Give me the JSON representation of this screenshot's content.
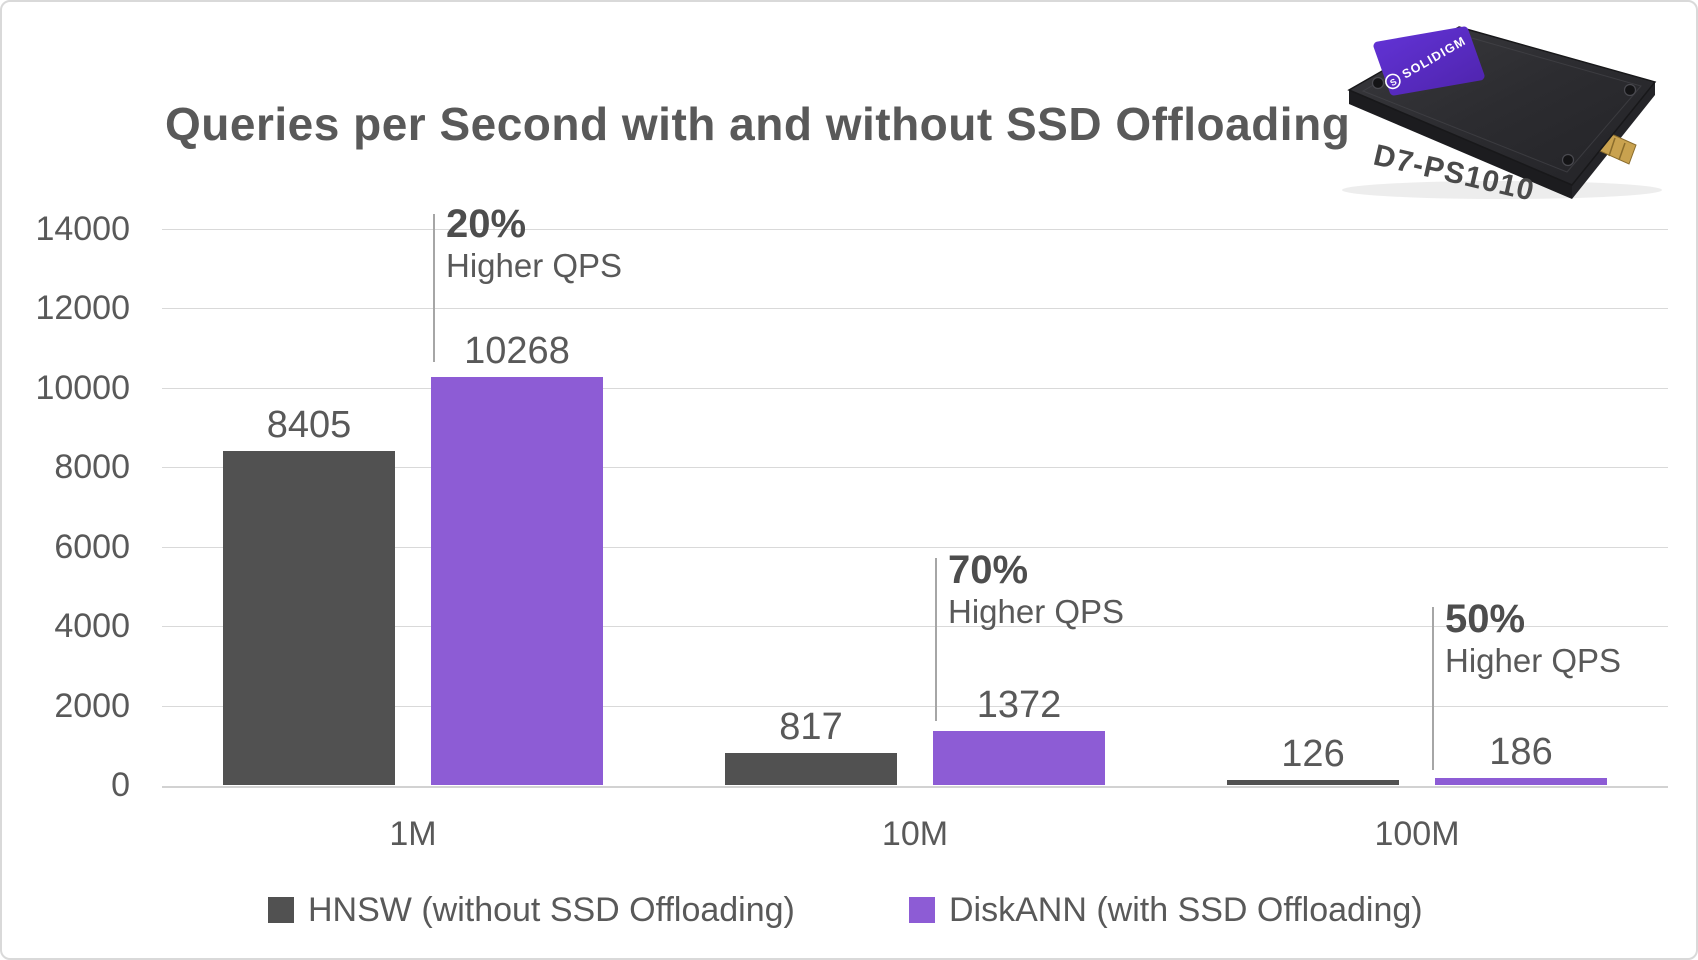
{
  "title": "Queries per Second with and without SSD Offloading",
  "ssd_image": {
    "brand": "SOLIDIGM",
    "model_label": "D7-PS1010"
  },
  "chart_data": {
    "type": "bar",
    "title": "Queries per Second with and without SSD Offloading",
    "categories": [
      "1M",
      "10M",
      "100M"
    ],
    "series": [
      {
        "name": "HNSW (without SSD Offloading)",
        "color": "#515151",
        "values": [
          8405,
          817,
          126
        ]
      },
      {
        "name": "DiskANN (with SSD Offloading)",
        "color": "#8D5CD5",
        "values": [
          10268,
          1372,
          186
        ]
      }
    ],
    "annotations": [
      {
        "category": "1M",
        "pct": "20%",
        "sub": "Higher QPS"
      },
      {
        "category": "10M",
        "pct": "70%",
        "sub": "Higher QPS"
      },
      {
        "category": "100M",
        "pct": "50%",
        "sub": "Higher QPS"
      }
    ],
    "xlabel": "",
    "ylabel": "",
    "ylim": [
      0,
      14000
    ],
    "yticks": [
      0,
      2000,
      4000,
      6000,
      8000,
      10000,
      12000,
      14000
    ],
    "grid": "horizontal",
    "legend_position": "bottom",
    "text_color": "#595959",
    "gridline_color": "#d9d9d9"
  }
}
